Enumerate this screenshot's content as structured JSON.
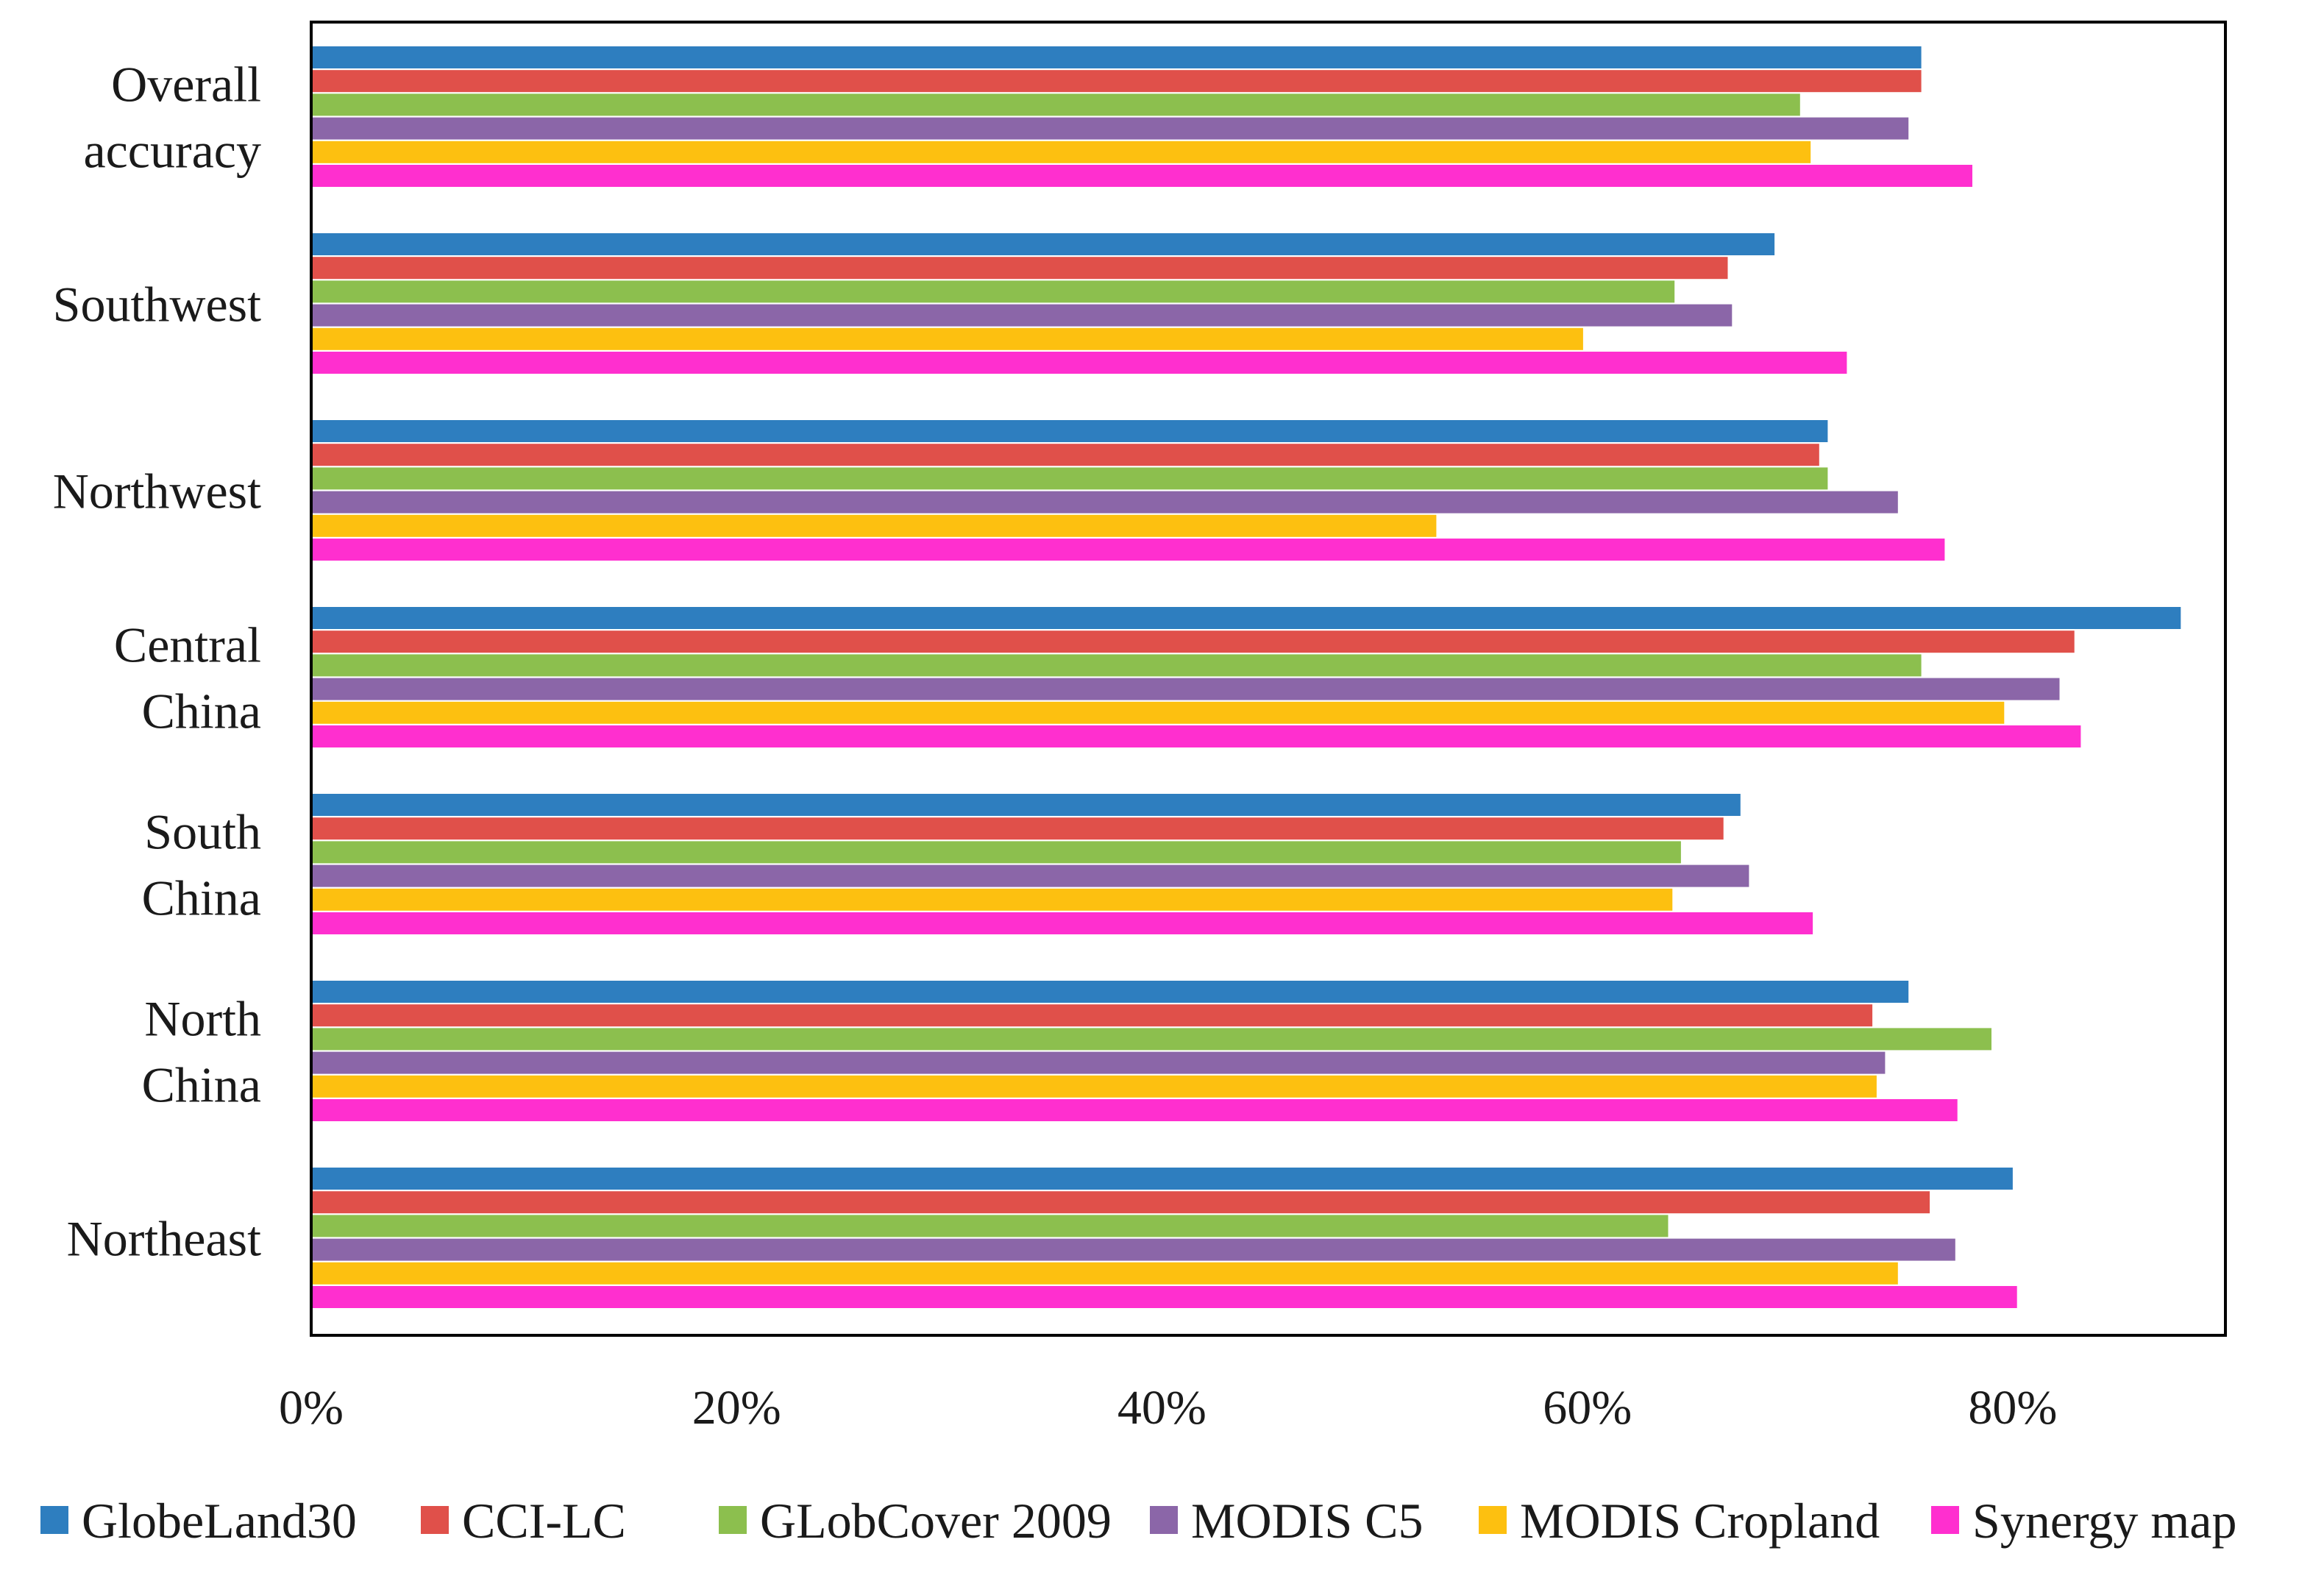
{
  "chart_data": {
    "type": "bar",
    "orientation": "horizontal",
    "categories": [
      [
        "Overall",
        "accuracy"
      ],
      [
        "Southwest"
      ],
      [
        "Northwest"
      ],
      [
        "Central",
        "China"
      ],
      [
        "South",
        "China"
      ],
      [
        "North",
        "China"
      ],
      [
        "Northeast"
      ]
    ],
    "series": [
      {
        "name": "GlobeLand30",
        "color": "#2e7ebf",
        "values": [
          75.7,
          68.8,
          71.3,
          87.9,
          67.2,
          75.1,
          80.0
        ]
      },
      {
        "name": "CCI-LC",
        "color": "#e0504a",
        "values": [
          75.7,
          66.6,
          70.9,
          82.9,
          66.4,
          73.4,
          76.1
        ]
      },
      {
        "name": "GLobCover 2009",
        "color": "#8cbf4e",
        "values": [
          70.0,
          64.1,
          71.3,
          75.7,
          64.4,
          79.0,
          63.8
        ]
      },
      {
        "name": "MODIS C5",
        "color": "#8b66a8",
        "values": [
          75.1,
          66.8,
          74.6,
          82.2,
          67.6,
          74.0,
          77.3
        ]
      },
      {
        "name": "MODIS Cropland",
        "color": "#fdc010",
        "values": [
          70.5,
          59.8,
          52.9,
          79.6,
          64.0,
          73.6,
          74.6
        ]
      },
      {
        "name": "Synergy map",
        "color": "#ff2fcf",
        "values": [
          78.1,
          72.2,
          76.8,
          83.2,
          70.6,
          77.4,
          80.2
        ]
      }
    ],
    "x_ticks": [
      "0%",
      "20%",
      "40%",
      "60%",
      "80%"
    ],
    "xlim": [
      0,
      90
    ],
    "tick_step": 20,
    "legend_position": "bottom",
    "grid": false
  }
}
